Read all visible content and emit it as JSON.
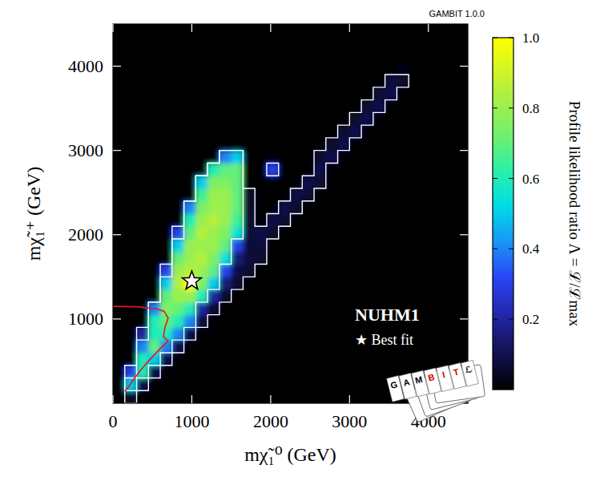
{
  "chart_data": {
    "type": "heatmap",
    "title": "NUHM1",
    "subtitle": "GAMBIT 1.0.0",
    "x_label": "mχ̃₁⁰ (GeV)",
    "y_label": "mχ̃₁⁺ (GeV)",
    "xlim": [
      0,
      4500
    ],
    "ylim": [
      0,
      4500
    ],
    "xticks": [
      0,
      1000,
      2000,
      3000,
      4000
    ],
    "yticks": [
      1000,
      2000,
      3000,
      4000
    ],
    "x_bins": [
      0,
      150,
      300,
      450,
      600,
      750,
      900,
      1050,
      1200,
      1350,
      1500,
      1650,
      1800,
      1950,
      2100,
      2250,
      2400,
      2550,
      2700,
      2850,
      3000,
      3150,
      3300,
      3450,
      3600,
      3750,
      3900,
      4050,
      4200,
      4350,
      4500
    ],
    "y_bins": [
      0,
      150,
      300,
      450,
      600,
      750,
      900,
      1050,
      1200,
      1350,
      1500,
      1650,
      1800,
      1950,
      2100,
      2250,
      2400,
      2550,
      2700,
      2850,
      3000,
      3150,
      3300,
      3450,
      3600,
      3750,
      3900,
      4050,
      4200,
      4350,
      4500
    ],
    "values": [
      [
        0,
        0.06,
        0,
        0,
        0,
        0,
        0,
        0,
        0,
        0,
        0,
        0,
        0,
        0,
        0,
        0,
        0,
        0,
        0,
        0,
        0,
        0,
        0,
        0,
        0,
        0,
        0,
        0,
        0,
        0
      ],
      [
        0,
        0.5,
        0.1,
        0,
        0,
        0,
        0,
        0,
        0,
        0,
        0,
        0,
        0,
        0,
        0,
        0,
        0,
        0,
        0,
        0,
        0,
        0,
        0,
        0,
        0,
        0,
        0,
        0,
        0,
        0
      ],
      [
        0,
        0.3,
        0.6,
        0.1,
        0,
        0,
        0,
        0,
        0,
        0,
        0,
        0,
        0,
        0,
        0,
        0,
        0,
        0,
        0,
        0,
        0,
        0,
        0,
        0,
        0,
        0,
        0,
        0,
        0,
        0
      ],
      [
        0,
        0,
        0.6,
        0.5,
        0.1,
        0,
        0,
        0,
        0,
        0,
        0,
        0,
        0,
        0,
        0,
        0,
        0,
        0,
        0,
        0,
        0,
        0,
        0,
        0,
        0,
        0,
        0,
        0,
        0,
        0
      ],
      [
        0,
        0,
        0.4,
        0.7,
        0.4,
        0.1,
        0,
        0,
        0,
        0,
        0,
        0,
        0,
        0,
        0,
        0,
        0,
        0,
        0,
        0,
        0,
        0,
        0,
        0,
        0,
        0,
        0,
        0,
        0,
        0
      ],
      [
        0,
        0,
        0.2,
        0.6,
        0.6,
        0.4,
        0.1,
        0,
        0,
        0,
        0,
        0,
        0,
        0,
        0,
        0,
        0,
        0,
        0,
        0,
        0,
        0,
        0,
        0,
        0,
        0,
        0,
        0,
        0,
        0
      ],
      [
        0,
        0,
        0,
        0.6,
        0.7,
        0.6,
        0.4,
        0.08,
        0,
        0,
        0,
        0,
        0,
        0,
        0,
        0,
        0,
        0,
        0,
        0,
        0,
        0,
        0,
        0,
        0,
        0,
        0,
        0,
        0,
        0
      ],
      [
        0,
        0,
        0,
        0.4,
        0.75,
        0.7,
        0.6,
        0.2,
        0.06,
        0,
        0,
        0,
        0,
        0,
        0,
        0,
        0,
        0,
        0,
        0,
        0,
        0,
        0,
        0,
        0,
        0,
        0,
        0,
        0,
        0
      ],
      [
        0,
        0,
        0,
        0,
        0.7,
        0.8,
        0.8,
        0.6,
        0.2,
        0.06,
        0,
        0,
        0,
        0,
        0,
        0,
        0,
        0,
        0,
        0,
        0,
        0,
        0,
        0,
        0,
        0,
        0,
        0,
        0,
        0
      ],
      [
        0,
        0,
        0,
        0,
        0.5,
        0.85,
        1,
        0.75,
        0.5,
        0.15,
        0.06,
        0,
        0,
        0,
        0,
        0,
        0,
        0,
        0,
        0,
        0,
        0,
        0,
        0,
        0,
        0,
        0,
        0,
        0,
        0
      ],
      [
        0,
        0,
        0,
        0,
        0.3,
        0.8,
        0.85,
        0.8,
        0.7,
        0.3,
        0.1,
        0.06,
        0,
        0,
        0,
        0,
        0,
        0,
        0,
        0,
        0,
        0,
        0,
        0,
        0,
        0,
        0,
        0,
        0,
        0
      ],
      [
        0,
        0,
        0,
        0,
        0,
        0.7,
        0.8,
        0.85,
        0.75,
        0.55,
        0.15,
        0.08,
        0.06,
        0,
        0,
        0,
        0,
        0,
        0,
        0,
        0,
        0,
        0,
        0,
        0,
        0,
        0,
        0,
        0,
        0
      ],
      [
        0,
        0,
        0,
        0,
        0,
        0.5,
        0.8,
        0.8,
        0.8,
        0.7,
        0.3,
        0.08,
        0.08,
        0,
        0,
        0,
        0,
        0,
        0,
        0,
        0,
        0,
        0,
        0,
        0,
        0,
        0,
        0,
        0,
        0
      ],
      [
        0,
        0,
        0,
        0,
        0,
        0.3,
        0.7,
        0.85,
        0.8,
        0.75,
        0.55,
        0.07,
        0.1,
        0.06,
        0,
        0,
        0,
        0,
        0,
        0,
        0,
        0,
        0,
        0,
        0,
        0,
        0,
        0,
        0,
        0
      ],
      [
        0,
        0,
        0,
        0,
        0,
        0,
        0.6,
        0.8,
        0.85,
        0.8,
        0.65,
        0.07,
        0,
        0.1,
        0.06,
        0,
        0,
        0,
        0,
        0,
        0,
        0,
        0,
        0,
        0,
        0,
        0,
        0,
        0,
        0
      ],
      [
        0,
        0,
        0,
        0,
        0,
        0,
        0.4,
        0.75,
        0.8,
        0.8,
        0.7,
        0.06,
        0,
        0,
        0.1,
        0.06,
        0,
        0,
        0,
        0,
        0,
        0,
        0,
        0,
        0,
        0,
        0,
        0,
        0,
        0
      ],
      [
        0,
        0,
        0,
        0,
        0,
        0,
        0,
        0.65,
        0.8,
        0.8,
        0.7,
        0.06,
        0,
        0,
        0,
        0.1,
        0.06,
        0,
        0,
        0,
        0,
        0,
        0,
        0,
        0,
        0,
        0,
        0,
        0,
        0
      ],
      [
        0,
        0,
        0,
        0,
        0,
        0,
        0,
        0.5,
        0.75,
        0.75,
        0.7,
        0,
        0,
        0,
        0,
        0,
        0.1,
        0.06,
        0,
        0,
        0,
        0,
        0,
        0,
        0,
        0,
        0,
        0,
        0,
        0
      ],
      [
        0,
        0,
        0,
        0,
        0,
        0,
        0,
        0,
        0.6,
        0.7,
        0.7,
        0,
        0,
        0.3,
        0,
        0,
        0,
        0.1,
        0,
        0,
        0,
        0,
        0,
        0,
        0,
        0,
        0,
        0,
        0,
        0
      ],
      [
        0,
        0,
        0,
        0,
        0,
        0,
        0,
        0,
        0,
        0.4,
        0.5,
        0,
        0,
        0,
        0,
        0,
        0,
        0.06,
        0.1,
        0,
        0,
        0,
        0,
        0,
        0,
        0,
        0,
        0,
        0,
        0
      ],
      [
        0,
        0,
        0,
        0,
        0,
        0,
        0,
        0,
        0,
        0,
        0,
        0,
        0,
        0,
        0,
        0,
        0,
        0,
        0.06,
        0.1,
        0,
        0,
        0,
        0,
        0,
        0,
        0,
        0,
        0,
        0
      ],
      [
        0,
        0,
        0,
        0,
        0,
        0,
        0,
        0,
        0,
        0,
        0,
        0,
        0,
        0,
        0,
        0,
        0,
        0,
        0,
        0.06,
        0.1,
        0,
        0,
        0,
        0,
        0,
        0,
        0,
        0,
        0
      ],
      [
        0,
        0,
        0,
        0,
        0,
        0,
        0,
        0,
        0,
        0,
        0,
        0,
        0,
        0,
        0,
        0,
        0,
        0,
        0,
        0,
        0.06,
        0.1,
        0,
        0,
        0,
        0,
        0,
        0,
        0,
        0
      ],
      [
        0,
        0,
        0,
        0,
        0,
        0,
        0,
        0,
        0,
        0,
        0,
        0,
        0,
        0,
        0,
        0,
        0,
        0,
        0,
        0,
        0,
        0.06,
        0.1,
        0,
        0,
        0,
        0,
        0,
        0,
        0
      ],
      [
        0,
        0,
        0,
        0,
        0,
        0,
        0,
        0,
        0,
        0,
        0,
        0,
        0,
        0,
        0,
        0,
        0,
        0,
        0,
        0,
        0,
        0,
        0.06,
        0.1,
        0,
        0,
        0,
        0,
        0,
        0
      ],
      [
        0,
        0,
        0,
        0,
        0,
        0,
        0,
        0,
        0,
        0,
        0,
        0,
        0,
        0,
        0,
        0,
        0,
        0,
        0,
        0,
        0,
        0,
        0,
        0.08,
        0.06,
        0,
        0,
        0,
        0,
        0
      ],
      [
        0,
        0,
        0,
        0,
        0,
        0,
        0,
        0,
        0,
        0,
        0,
        0,
        0,
        0,
        0,
        0,
        0,
        0,
        0,
        0,
        0,
        0,
        0,
        0,
        0.03,
        0,
        0,
        0,
        0,
        0
      ],
      [
        0,
        0,
        0,
        0,
        0,
        0,
        0,
        0,
        0,
        0,
        0,
        0,
        0,
        0,
        0,
        0,
        0,
        0,
        0,
        0,
        0,
        0,
        0,
        0,
        0,
        0,
        0,
        0,
        0,
        0
      ],
      [
        0,
        0,
        0,
        0,
        0,
        0,
        0,
        0,
        0,
        0,
        0,
        0,
        0,
        0,
        0,
        0,
        0,
        0,
        0,
        0,
        0,
        0,
        0,
        0,
        0,
        0,
        0,
        0,
        0,
        0
      ],
      [
        0,
        0,
        0,
        0,
        0,
        0,
        0,
        0,
        0,
        0,
        0,
        0,
        0,
        0,
        0,
        0,
        0,
        0,
        0,
        0,
        0,
        0,
        0,
        0,
        0,
        0,
        0,
        0,
        0,
        0
      ]
    ],
    "contour_levels": [
      0.32,
      0.05
    ],
    "colorbar": {
      "label": "Profile likelihood ratio Λ = ℒ/ℒmax",
      "lim": [
        0,
        1
      ],
      "ticks": [
        0.2,
        0.4,
        0.6,
        0.8,
        {
          "value": 1,
          "label": "1.0"
        }
      ]
    },
    "best_fit": {
      "x": 1000,
      "y": 1450
    },
    "lines": [
      {
        "color": "#e8141e",
        "x": [
          0,
          300,
          550,
          650,
          700,
          660,
          640,
          700,
          560,
          420,
          300,
          200,
          150
        ],
        "y": [
          1150,
          1145,
          1120,
          1090,
          1010,
          900,
          790,
          740,
          610,
          470,
          330,
          200,
          140
        ]
      }
    ],
    "annotations": [
      "★ Best fit"
    ],
    "logo": [
      "G",
      "A",
      "M",
      "B",
      "I",
      "T",
      "ℒ"
    ]
  }
}
